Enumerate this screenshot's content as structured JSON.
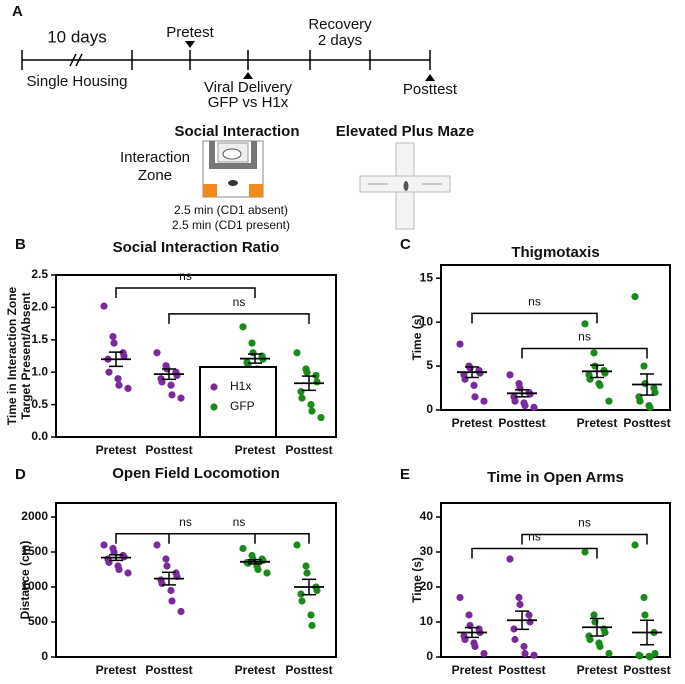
{
  "panel_a": {
    "label": "A",
    "duration": "10 days",
    "housing": "Single Housing",
    "pretest": "Pretest",
    "viral": [
      "Viral Delivery",
      "GFP vs H1x"
    ],
    "recovery": [
      "Recovery",
      "2 days"
    ],
    "posttest": "Posttest",
    "social_title": "Social Interaction",
    "zone": [
      "Interaction",
      "Zone"
    ],
    "durations": [
      "2.5 min (CD1 absent)",
      "2.5 min (CD1 present)"
    ],
    "epm_title": "Elevated Plus Maze"
  },
  "chart_data": [
    {
      "type": "dotplot",
      "panel": "B",
      "title": "Social Interaction Ratio",
      "ylabel": [
        "Time in Interaction Zone",
        "Target Present/Absent"
      ],
      "categories": [
        "Pretest",
        "Posttest",
        "Pretest",
        "Posttest"
      ],
      "ylim": [
        0,
        2.5
      ],
      "yticks": [
        {
          "value": 0,
          "label": "0.0"
        },
        0.5,
        {
          "value": 1,
          "label": "1.0"
        },
        1.5,
        {
          "value": 2,
          "label": "2.0"
        },
        2.5
      ],
      "series": [
        {
          "name": "H1x",
          "color": "#7b2a9e",
          "groups": [
            {
              "values": [
                2.02,
                1.55,
                1.45,
                1.3,
                1.25,
                1.2,
                1.0,
                0.9,
                0.8,
                0.75
              ],
              "mean": 1.2,
              "sem": 0.11
            },
            {
              "values": [
                1.3,
                1.1,
                1.05,
                1.0,
                0.95,
                0.9,
                0.85,
                0.8,
                0.65,
                0.6
              ],
              "mean": 0.97,
              "sem": 0.08
            }
          ]
        },
        {
          "name": "GFP",
          "color": "#1a8a1a",
          "groups": [
            {
              "values": [
                1.7,
                1.45,
                1.3,
                1.25,
                1.2,
                1.15,
                1.1,
                1.05,
                1.0,
                0.9
              ],
              "mean": 1.21,
              "sem": 0.07
            },
            {
              "values": [
                1.3,
                1.05,
                1.0,
                0.95,
                0.85,
                0.7,
                0.6,
                0.5,
                0.4,
                0.3
              ],
              "mean": 0.83,
              "sem": 0.11
            }
          ]
        }
      ],
      "brackets": [
        {
          "label": "ns",
          "from": 0,
          "to": 2,
          "y": 2.3
        },
        {
          "label": "ns",
          "from": 1,
          "to": 3,
          "y": 1.9
        }
      ]
    },
    {
      "type": "dotplot",
      "panel": "C",
      "title": "Thigmotaxis",
      "ylabel": [
        "Time (s)"
      ],
      "categories": [
        "Pretest",
        "Posttest",
        "Pretest",
        "Posttest"
      ],
      "ylim": [
        0,
        16.5
      ],
      "yticks": [
        0,
        5,
        10,
        15
      ],
      "series": [
        {
          "color": "#7b2a9e",
          "groups": [
            {
              "values": [
                7.5,
                5.0,
                4.8,
                4.5,
                4.2,
                4.0,
                3.5,
                2.8,
                1.5,
                1.0
              ],
              "mean": 4.3,
              "sem": 0.6
            },
            {
              "values": [
                4.0,
                3.0,
                2.5,
                2.0,
                1.8,
                1.5,
                1.0,
                0.8,
                0.5,
                0.3
              ],
              "mean": 1.9,
              "sem": 0.4
            }
          ]
        },
        {
          "color": "#1a8a1a",
          "groups": [
            {
              "values": [
                9.8,
                6.5,
                5.0,
                4.5,
                4.2,
                4.0,
                3.5,
                3.0,
                2.8,
                1.0
              ],
              "mean": 4.4,
              "sem": 0.7
            },
            {
              "values": [
                12.9,
                5.0,
                3.0,
                2.5,
                2.0,
                1.5,
                1.0,
                0.5,
                0.3
              ],
              "mean": 2.9,
              "sem": 1.2
            }
          ]
        }
      ],
      "brackets": [
        {
          "label": "ns",
          "from": 0,
          "to": 2,
          "y": 11
        },
        {
          "label": "ns",
          "from": 1,
          "to": 3,
          "y": 7
        }
      ]
    },
    {
      "type": "dotplot",
      "panel": "D",
      "title": "Open Field Locomotion",
      "ylabel": [
        "Distance (cm)"
      ],
      "categories": [
        "Pretest",
        "Posttest",
        "Pretest",
        "Posttest"
      ],
      "ylim": [
        0,
        2200
      ],
      "yticks": [
        0,
        500,
        1000,
        1500,
        2000
      ],
      "series": [
        {
          "color": "#7b2a9e",
          "groups": [
            {
              "values": [
                1600,
                1550,
                1500,
                1450,
                1430,
                1400,
                1350,
                1300,
                1250,
                1200
              ],
              "mean": 1420,
              "sem": 40
            },
            {
              "values": [
                1600,
                1400,
                1300,
                1200,
                1150,
                1100,
                1050,
                950,
                800,
                650
              ],
              "mean": 1120,
              "sem": 90
            }
          ]
        },
        {
          "color": "#1a8a1a",
          "groups": [
            {
              "values": [
                1550,
                1450,
                1400,
                1400,
                1380,
                1350,
                1340,
                1300,
                1250,
                1200
              ],
              "mean": 1360,
              "sem": 30
            },
            {
              "values": [
                1600,
                1300,
                1200,
                1000,
                950,
                900,
                800,
                600,
                450
              ],
              "mean": 1000,
              "sem": 110
            }
          ]
        }
      ],
      "brackets": [
        {
          "label": "ns",
          "from": 0,
          "to": 2,
          "y": 1760
        },
        {
          "label": "ns",
          "from": 1,
          "to": 3,
          "y": 1760
        }
      ]
    },
    {
      "type": "dotplot",
      "panel": "E",
      "title": "Time in Open Arms",
      "ylabel": [
        "Time (s)"
      ],
      "categories": [
        "Pretest",
        "Posttest",
        "Pretest",
        "Posttest"
      ],
      "ylim": [
        0,
        44
      ],
      "yticks": [
        0,
        10,
        20,
        30,
        40
      ],
      "series": [
        {
          "color": "#7b2a9e",
          "groups": [
            {
              "values": [
                17,
                12,
                9,
                8,
                7,
                6,
                5,
                4,
                3,
                1
              ],
              "mean": 7,
              "sem": 1.4
            },
            {
              "values": [
                28,
                17,
                15,
                12,
                10,
                8,
                5,
                3,
                1,
                0.5
              ],
              "mean": 10.5,
              "sem": 2.6
            }
          ]
        },
        {
          "color": "#1a8a1a",
          "groups": [
            {
              "values": [
                30,
                12,
                10,
                8,
                7,
                6,
                5,
                4,
                3,
                1
              ],
              "mean": 8.5,
              "sem": 2.5
            },
            {
              "values": [
                32,
                17,
                12,
                7,
                1,
                0.5,
                0.3,
                0.2,
                0
              ],
              "mean": 7,
              "sem": 3.5
            }
          ]
        }
      ],
      "brackets": [
        {
          "label": "ns",
          "from": 0,
          "to": 2,
          "y": 31
        },
        {
          "label": "ns",
          "from": 1,
          "to": 3,
          "y": 35
        }
      ]
    }
  ]
}
